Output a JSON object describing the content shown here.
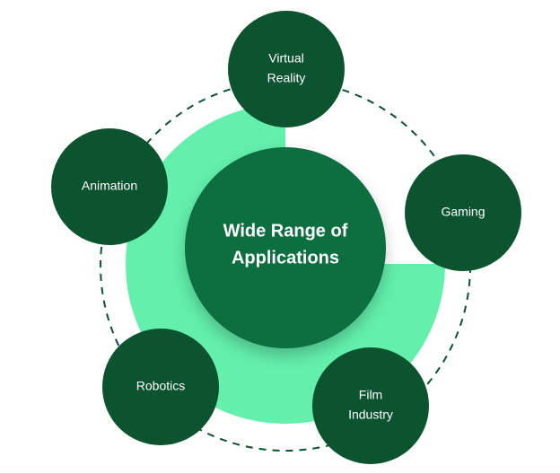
{
  "colors": {
    "node_fill": "#0c5330",
    "center_fill": "#0f6e40",
    "ring_fill": "#63efac",
    "dashed_ring": "#0c5330",
    "text": "#ffffff"
  },
  "center": {
    "line1": "Wide Range of",
    "line2": "Applications"
  },
  "nodes": {
    "virtual_reality": {
      "line1": "Virtual",
      "line2": "Reality"
    },
    "gaming": {
      "label": "Gaming"
    },
    "film_industry": {
      "line1": "Film",
      "line2": "Industry"
    },
    "robotics": {
      "label": "Robotics"
    },
    "animation": {
      "label": "Animation"
    }
  }
}
